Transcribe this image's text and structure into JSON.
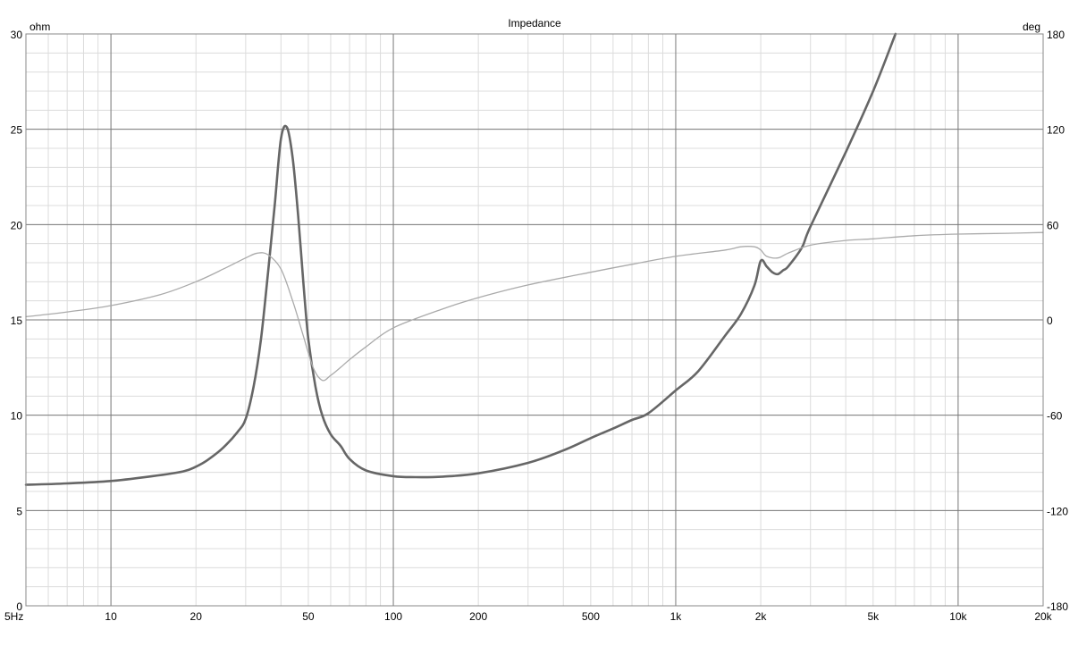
{
  "chart_data": {
    "type": "line",
    "title": "Impedance",
    "ylabel": "ohm",
    "y2label": "deg",
    "xscale": "log",
    "xlim": [
      5,
      20000
    ],
    "ylim": [
      0,
      30
    ],
    "y2lim": [
      -180,
      180
    ],
    "grid": true,
    "x_ticks": [
      {
        "v": 5,
        "label": "5Hz"
      },
      {
        "v": 10,
        "label": "10"
      },
      {
        "v": 20,
        "label": "20"
      },
      {
        "v": 50,
        "label": "50"
      },
      {
        "v": 100,
        "label": "100"
      },
      {
        "v": 200,
        "label": "200"
      },
      {
        "v": 500,
        "label": "500"
      },
      {
        "v": 1000,
        "label": "1k"
      },
      {
        "v": 2000,
        "label": "2k"
      },
      {
        "v": 5000,
        "label": "5k"
      },
      {
        "v": 10000,
        "label": "10k"
      },
      {
        "v": 20000,
        "label": "20k"
      }
    ],
    "y_ticks": [
      {
        "v": 0,
        "label": "0"
      },
      {
        "v": 5,
        "label": "5"
      },
      {
        "v": 10,
        "label": "10"
      },
      {
        "v": 15,
        "label": "15"
      },
      {
        "v": 20,
        "label": "20"
      },
      {
        "v": 25,
        "label": "25"
      },
      {
        "v": 30,
        "label": "30"
      }
    ],
    "y2_ticks": [
      {
        "v": -180,
        "label": "-180"
      },
      {
        "v": -120,
        "label": "-120"
      },
      {
        "v": -60,
        "label": "-60"
      },
      {
        "v": 0,
        "label": "0"
      },
      {
        "v": 60,
        "label": "60"
      },
      {
        "v": 120,
        "label": "120"
      },
      {
        "v": 180,
        "label": "180"
      }
    ],
    "series": [
      {
        "axis": "y",
        "color": "#666666",
        "x": [
          5,
          7,
          10,
          14,
          18,
          20,
          22,
          25,
          28,
          30,
          32,
          34,
          36,
          38,
          40,
          42,
          44,
          46,
          48,
          50,
          53,
          56,
          60,
          65,
          70,
          80,
          100,
          120,
          150,
          200,
          300,
          400,
          500,
          600,
          700,
          800,
          1000,
          1200,
          1500,
          1700,
          1900,
          2000,
          2100,
          2200,
          2300,
          2400,
          2500,
          2800,
          3000,
          4000,
          5000,
          6000
        ],
        "y": [
          6.35,
          6.42,
          6.55,
          6.8,
          7.05,
          7.3,
          7.65,
          8.3,
          9.1,
          9.8,
          11.5,
          14.0,
          17.5,
          21.0,
          24.5,
          25.1,
          23.5,
          20.5,
          17.0,
          14.0,
          11.5,
          10.0,
          9.0,
          8.4,
          7.7,
          7.1,
          6.8,
          6.75,
          6.78,
          6.95,
          7.5,
          8.15,
          8.8,
          9.3,
          9.75,
          10.1,
          11.3,
          12.3,
          14.2,
          15.3,
          16.8,
          18.1,
          17.8,
          17.5,
          17.4,
          17.6,
          17.8,
          18.8,
          19.9,
          23.8,
          27.0,
          30.0
        ]
      },
      {
        "axis": "y2",
        "color": "#aaaaaa",
        "x": [
          5,
          7,
          10,
          15,
          20,
          25,
          30,
          33,
          36,
          40,
          44,
          48,
          52,
          56,
          60,
          65,
          70,
          80,
          100,
          150,
          200,
          300,
          500,
          700,
          1000,
          1500,
          1700,
          1900,
          2000,
          2100,
          2300,
          2500,
          3000,
          4000,
          5000,
          7000,
          10000,
          15000,
          20000
        ],
        "y": [
          2,
          5,
          9,
          16,
          24,
          32,
          39,
          42,
          41,
          32,
          12,
          -10,
          -30,
          -38,
          -35,
          -30,
          -25,
          -17,
          -5,
          7,
          14,
          22,
          30,
          35,
          40,
          44,
          46,
          46,
          44,
          40,
          39,
          42,
          47,
          50,
          51,
          53,
          54,
          54.5,
          55
        ]
      }
    ]
  }
}
